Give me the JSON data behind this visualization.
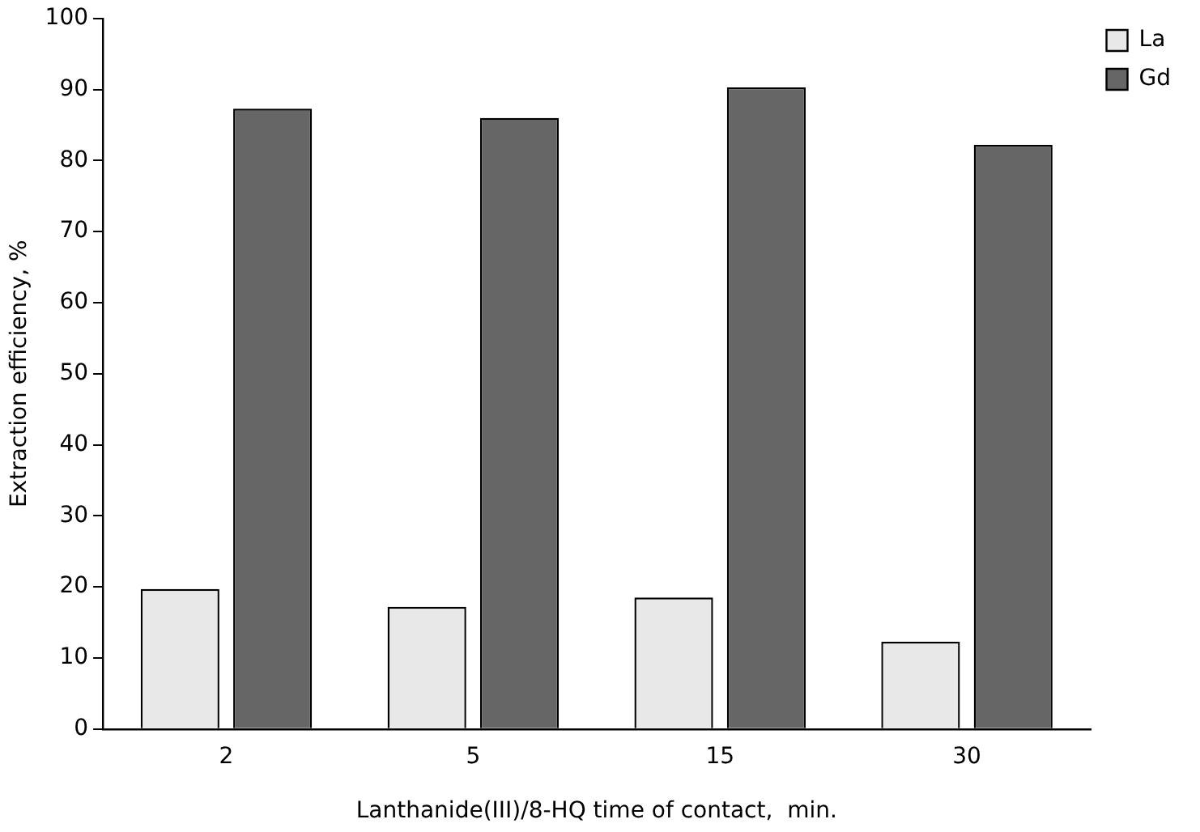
{
  "chart_data": {
    "type": "bar",
    "xlabel": "Lanthanide(III)/8-HQ time of contact,  min.",
    "ylabel": "Extraction efficiency, %",
    "categories": [
      "2",
      "5",
      "15",
      "30"
    ],
    "series": [
      {
        "name": "La",
        "color": "#e8e8e8",
        "values": [
          19.7,
          17.2,
          18.5,
          12.3
        ]
      },
      {
        "name": "Gd",
        "color": "#666666",
        "values": [
          87.3,
          86.0,
          90.3,
          82.2
        ]
      }
    ],
    "ylim": [
      0,
      100
    ],
    "yticks": [
      0,
      10,
      20,
      30,
      40,
      50,
      60,
      70,
      80,
      90,
      100
    ],
    "grid": false,
    "legend": "top right"
  }
}
